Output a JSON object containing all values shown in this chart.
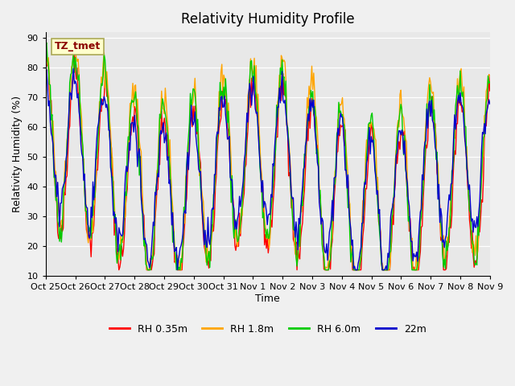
{
  "title": "Relativity Humidity Profile",
  "xlabel": "Time",
  "ylabel": "Relativity Humidity (%)",
  "ylim": [
    10,
    92
  ],
  "yticks": [
    10,
    20,
    30,
    40,
    50,
    60,
    70,
    80,
    90
  ],
  "colors": {
    "RH 0.35m": "#ff0000",
    "RH 1.8m": "#ffa500",
    "RH 6.0m": "#00cc00",
    "22m": "#0000cc"
  },
  "annotation_text": "TZ_tmet",
  "annotation_color": "#8b0000",
  "annotation_bg": "#ffffcc",
  "plot_bg": "#e8e8e8",
  "fig_bg": "#f0f0f0",
  "n_points": 480,
  "xtick_labels": [
    "Oct 25",
    "Oct 26",
    "Oct 27",
    "Oct 28",
    "Oct 29",
    "Oct 30",
    "Oct 31",
    "Nov 1",
    "Nov 2",
    "Nov 3",
    "Nov 4",
    "Nov 5",
    "Nov 6",
    "Nov 7",
    "Nov 8",
    "Nov 9"
  ],
  "n_days": 15
}
